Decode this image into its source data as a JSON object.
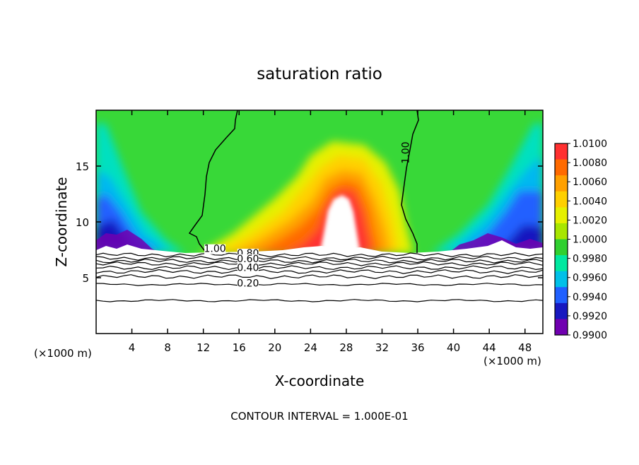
{
  "chart_data": {
    "type": "contour",
    "title": "saturation ratio",
    "xlabel": "X-coordinate",
    "ylabel": "Z-coordinate",
    "x_unit_left": "(×1000 m)",
    "x_unit_right": "(×1000 m)",
    "footer": "CONTOUR INTERVAL = 1.000E-01",
    "xlim": [
      0,
      50
    ],
    "ylim": [
      0,
      20
    ],
    "x_ticks": [
      4,
      8,
      12,
      16,
      20,
      24,
      28,
      32,
      36,
      40,
      44,
      48
    ],
    "y_ticks": [
      5,
      10,
      15
    ],
    "colorbar": {
      "levels": [
        "1.0100",
        "1.0080",
        "1.0060",
        "1.0040",
        "1.0020",
        "1.0000",
        "0.9980",
        "0.9960",
        "0.9940",
        "0.9920",
        "0.9900"
      ],
      "colors": [
        "#ff3030",
        "#ff6a00",
        "#ffa000",
        "#ffd000",
        "#e6f000",
        "#a8e600",
        "#30d030",
        "#00e8a0",
        "#00c0e8",
        "#2060ff",
        "#1818c0",
        "#7000b0"
      ]
    },
    "contour_labels": [
      {
        "text": "1.00",
        "x": 13.3,
        "z": 7.3
      },
      {
        "text": "1.00",
        "x": 35.0,
        "z": 16.2,
        "rotate": true
      },
      {
        "text": "0.80",
        "x": 17.0,
        "z": 6.9
      },
      {
        "text": "0.60",
        "x": 17.0,
        "z": 6.4
      },
      {
        "text": "0.40",
        "x": 17.0,
        "z": 5.6
      },
      {
        "text": "0.20",
        "x": 17.0,
        "z": 4.2
      }
    ],
    "contour_lines_z": [
      7.05,
      6.75,
      6.5,
      6.25,
      5.9,
      5.55,
      5.1,
      4.4,
      2.95
    ],
    "cloud_base_z": 7.2
  }
}
